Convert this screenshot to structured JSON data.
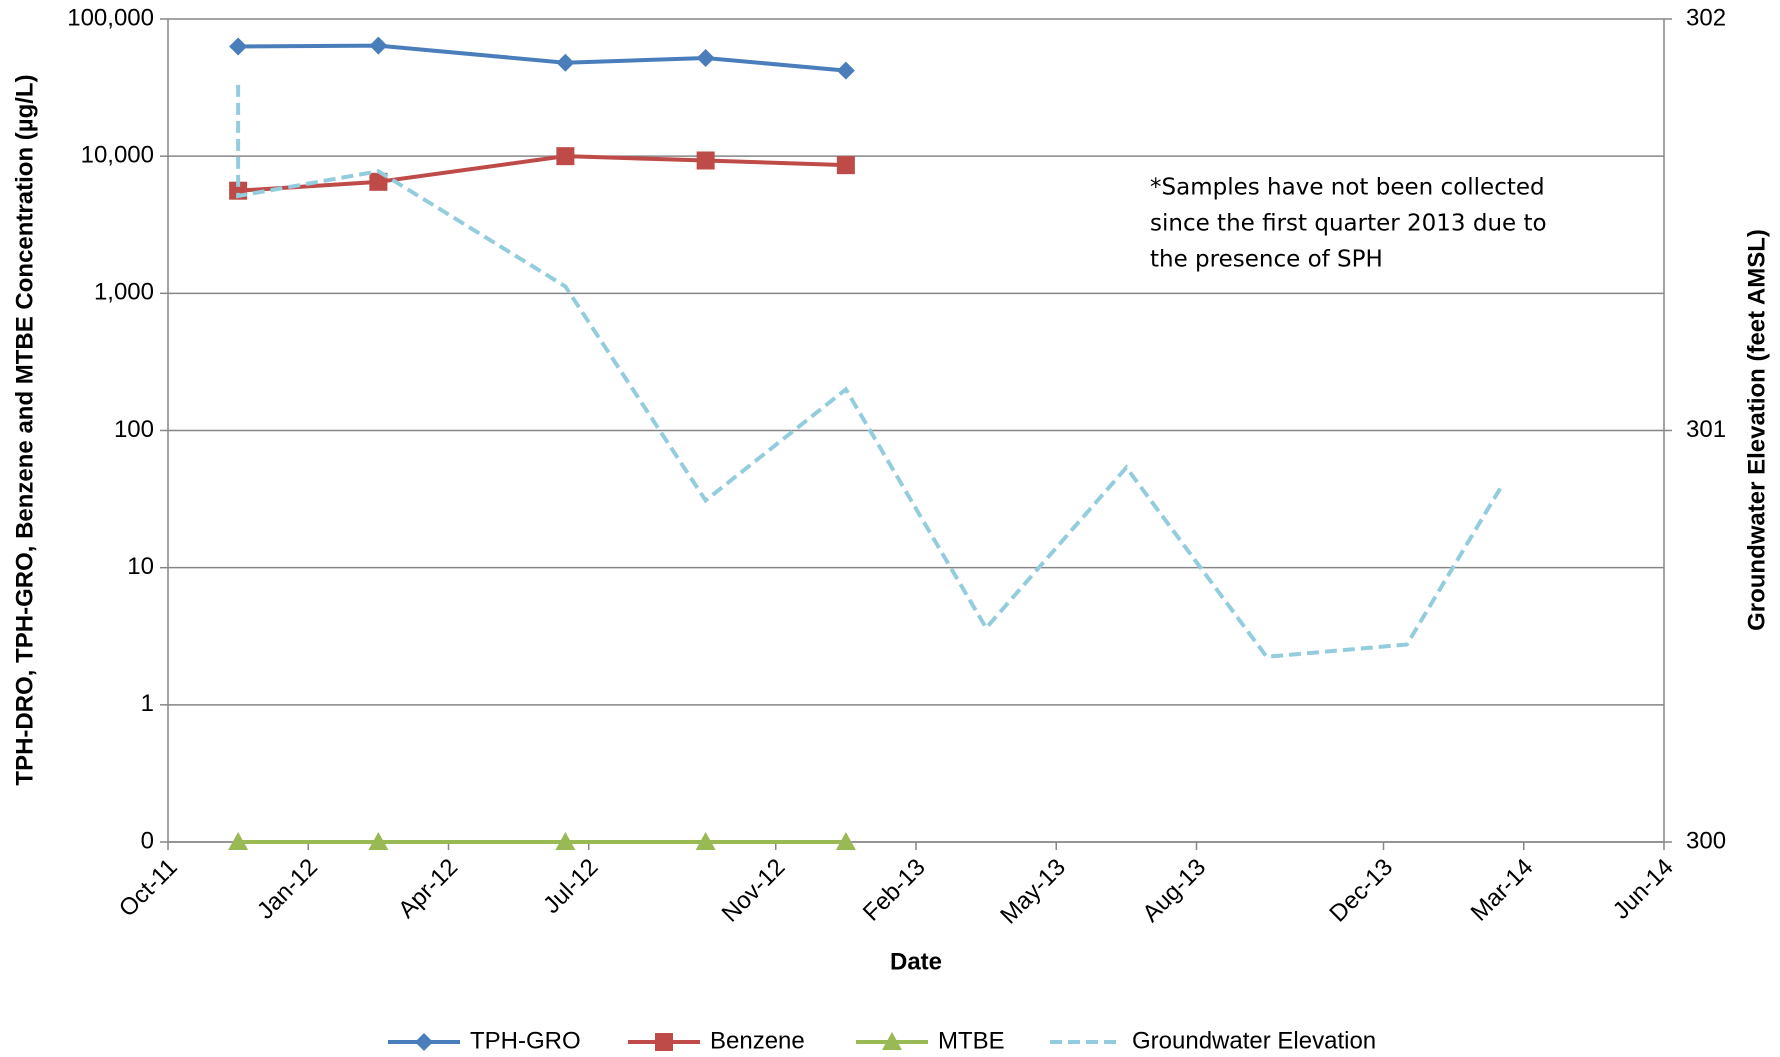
{
  "chart_data": {
    "type": "line",
    "x_label": "Date",
    "y_label": "TPH-DRO, TPH-GRO, Benzene and MTBE Concentration (µg/L)",
    "y2_label": "Groundwater Elevation (feet AMSL)",
    "annotation": [
      "*Samples have not been collected",
      "since the first quarter 2013 due to",
      "the presence of SPH"
    ],
    "ylog": true,
    "grid": true,
    "legend": "bottom",
    "xlim": [
      "Oct-11",
      "Jun-14"
    ],
    "xticks": [
      "Oct-11",
      "Jan-12",
      "Apr-12",
      "Jul-12",
      "Nov-12",
      "Feb-13",
      "May-13",
      "Aug-13",
      "Dec-13",
      "Mar-14",
      "Jun-14"
    ],
    "ylim": [
      0.1,
      100000
    ],
    "yticks": [
      {
        "value": 0.1,
        "label": "0"
      },
      1,
      10,
      100,
      {
        "value": 1000,
        "label": "1,000"
      },
      {
        "value": 10000,
        "label": "10,000"
      },
      {
        "value": 100000,
        "label": "100,000"
      }
    ],
    "y2lim": [
      300,
      302
    ],
    "y2ticks": [
      300,
      301,
      302
    ],
    "series": [
      {
        "name": "TPH-GRO",
        "color": "#4a7ebb",
        "marker": "diamond",
        "x": [
          "Nov-11",
          "Feb-12",
          "Jun-12",
          "Sep-12",
          "Dec-12"
        ],
        "values": [
          63000,
          64000,
          48000,
          52000,
          42000
        ]
      },
      {
        "name": "Benzene",
        "color": "#be4b48",
        "marker": "square",
        "x": [
          "Nov-11",
          "Feb-12",
          "Jun-12",
          "Sep-12",
          "Dec-12"
        ],
        "values": [
          5600,
          6500,
          10000,
          9300,
          8600
        ]
      },
      {
        "name": "MTBE",
        "color": "#98b954",
        "marker": "triangle",
        "x": [
          "Nov-11",
          "Feb-12",
          "Jun-12",
          "Sep-12",
          "Dec-12"
        ],
        "values": [
          0.1,
          0.1,
          0.1,
          0.1,
          0.1
        ]
      },
      {
        "name": "Groundwater Elevation",
        "color": "#93cddd",
        "dashed": true,
        "axis": "y2",
        "x": [
          "Nov-11",
          "Nov-11",
          "Feb-12",
          "Jun-12",
          "Sep-12",
          "Dec-12",
          "Mar-13",
          "Jun-13",
          "Sep-13",
          "Dec-13",
          "Feb-14"
        ],
        "values": [
          301.84,
          301.57,
          301.63,
          301.35,
          300.83,
          301.1,
          300.52,
          300.91,
          300.45,
          300.48,
          300.86
        ]
      }
    ]
  }
}
